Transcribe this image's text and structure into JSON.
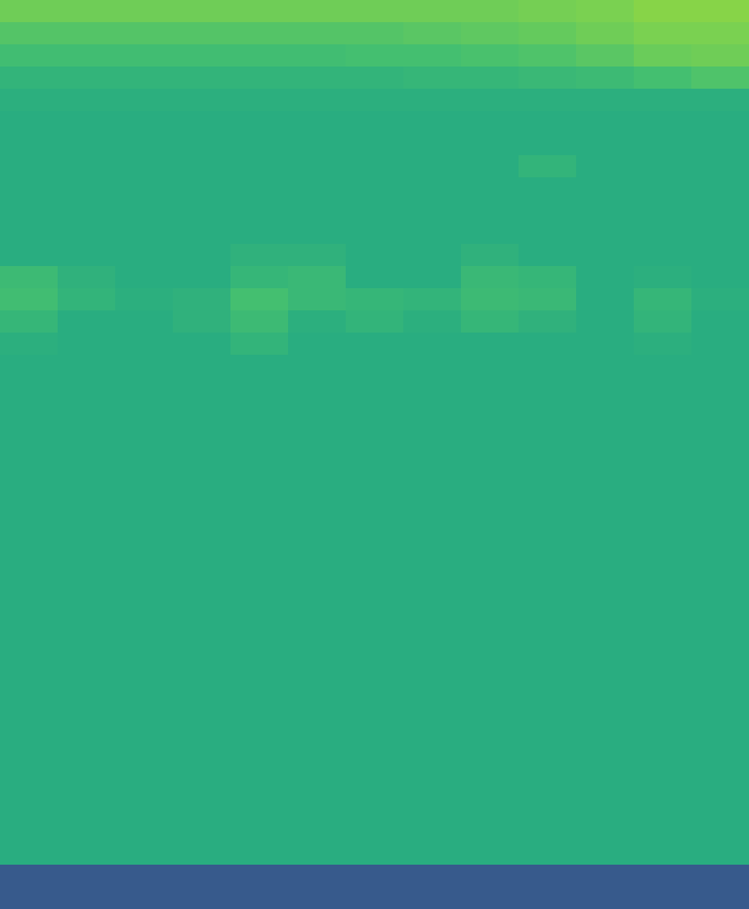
{
  "chart_data": {
    "type": "heatmap",
    "tick_labels": false,
    "xlim": [
      0,
      13
    ],
    "ylim": [
      0,
      41
    ],
    "zlim": [
      0,
      1
    ],
    "cells": [
      [
        0.78,
        0.78,
        0.78,
        0.78,
        0.78,
        0.78,
        0.78,
        0.78,
        0.78,
        0.79,
        0.8,
        0.82,
        0.82
      ],
      [
        0.73,
        0.73,
        0.73,
        0.73,
        0.73,
        0.73,
        0.73,
        0.74,
        0.75,
        0.76,
        0.78,
        0.8,
        0.8
      ],
      [
        0.69,
        0.69,
        0.69,
        0.69,
        0.69,
        0.69,
        0.7,
        0.7,
        0.71,
        0.72,
        0.74,
        0.77,
        0.78
      ],
      [
        0.65,
        0.65,
        0.65,
        0.65,
        0.65,
        0.65,
        0.65,
        0.66,
        0.66,
        0.67,
        0.68,
        0.7,
        0.72
      ],
      [
        0.63,
        0.63,
        0.63,
        0.63,
        0.63,
        0.63,
        0.63,
        0.63,
        0.63,
        0.63,
        0.63,
        0.63,
        0.63
      ],
      [
        0.62,
        0.62,
        0.62,
        0.62,
        0.62,
        0.62,
        0.62,
        0.62,
        0.62,
        0.62,
        0.62,
        0.62,
        0.62
      ],
      [
        0.62,
        0.62,
        0.62,
        0.62,
        0.62,
        0.62,
        0.62,
        0.62,
        0.62,
        0.62,
        0.62,
        0.62,
        0.62
      ],
      [
        0.62,
        0.62,
        0.62,
        0.62,
        0.62,
        0.62,
        0.62,
        0.62,
        0.62,
        0.65,
        0.62,
        0.62,
        0.62
      ],
      [
        0.62,
        0.62,
        0.62,
        0.62,
        0.62,
        0.62,
        0.62,
        0.62,
        0.62,
        0.62,
        0.62,
        0.62,
        0.62
      ],
      [
        0.62,
        0.62,
        0.62,
        0.62,
        0.62,
        0.62,
        0.62,
        0.62,
        0.62,
        0.62,
        0.62,
        0.62,
        0.62
      ],
      [
        0.62,
        0.62,
        0.62,
        0.62,
        0.62,
        0.62,
        0.62,
        0.62,
        0.62,
        0.62,
        0.62,
        0.62,
        0.62
      ],
      [
        0.62,
        0.62,
        0.62,
        0.62,
        0.64,
        0.64,
        0.62,
        0.62,
        0.64,
        0.62,
        0.62,
        0.62,
        0.62
      ],
      [
        0.68,
        0.64,
        0.62,
        0.62,
        0.66,
        0.67,
        0.62,
        0.62,
        0.67,
        0.66,
        0.62,
        0.63,
        0.62
      ],
      [
        0.69,
        0.65,
        0.63,
        0.64,
        0.7,
        0.67,
        0.66,
        0.65,
        0.68,
        0.67,
        0.62,
        0.66,
        0.63
      ],
      [
        0.66,
        0.62,
        0.62,
        0.64,
        0.68,
        0.63,
        0.65,
        0.63,
        0.66,
        0.64,
        0.62,
        0.65,
        0.62
      ],
      [
        0.63,
        0.62,
        0.62,
        0.62,
        0.65,
        0.62,
        0.62,
        0.62,
        0.62,
        0.62,
        0.62,
        0.63,
        0.62
      ],
      [
        0.62,
        0.62,
        0.62,
        0.62,
        0.62,
        0.62,
        0.62,
        0.62,
        0.62,
        0.62,
        0.62,
        0.62,
        0.62
      ],
      [
        0.62,
        0.62,
        0.62,
        0.62,
        0.62,
        0.62,
        0.62,
        0.62,
        0.62,
        0.62,
        0.62,
        0.62,
        0.62
      ],
      [
        0.62,
        0.62,
        0.62,
        0.62,
        0.62,
        0.62,
        0.62,
        0.62,
        0.62,
        0.62,
        0.62,
        0.62,
        0.62
      ],
      [
        0.62,
        0.62,
        0.62,
        0.62,
        0.62,
        0.62,
        0.62,
        0.62,
        0.62,
        0.62,
        0.62,
        0.62,
        0.62
      ],
      [
        0.62,
        0.62,
        0.62,
        0.62,
        0.62,
        0.62,
        0.62,
        0.62,
        0.62,
        0.62,
        0.62,
        0.62,
        0.62
      ],
      [
        0.62,
        0.62,
        0.62,
        0.62,
        0.62,
        0.62,
        0.62,
        0.62,
        0.62,
        0.62,
        0.62,
        0.62,
        0.62
      ],
      [
        0.62,
        0.62,
        0.62,
        0.62,
        0.62,
        0.62,
        0.62,
        0.62,
        0.62,
        0.62,
        0.62,
        0.62,
        0.62
      ],
      [
        0.62,
        0.62,
        0.62,
        0.62,
        0.62,
        0.62,
        0.62,
        0.62,
        0.62,
        0.62,
        0.62,
        0.62,
        0.62
      ],
      [
        0.62,
        0.62,
        0.62,
        0.62,
        0.62,
        0.62,
        0.62,
        0.62,
        0.62,
        0.62,
        0.62,
        0.62,
        0.62
      ],
      [
        0.62,
        0.62,
        0.62,
        0.62,
        0.62,
        0.62,
        0.62,
        0.62,
        0.62,
        0.62,
        0.62,
        0.62,
        0.62
      ],
      [
        0.62,
        0.62,
        0.62,
        0.62,
        0.62,
        0.62,
        0.62,
        0.62,
        0.62,
        0.62,
        0.62,
        0.62,
        0.62
      ],
      [
        0.62,
        0.62,
        0.62,
        0.62,
        0.62,
        0.62,
        0.62,
        0.62,
        0.62,
        0.62,
        0.62,
        0.62,
        0.62
      ],
      [
        0.62,
        0.62,
        0.62,
        0.62,
        0.62,
        0.62,
        0.62,
        0.62,
        0.62,
        0.62,
        0.62,
        0.62,
        0.62
      ],
      [
        0.62,
        0.62,
        0.62,
        0.62,
        0.62,
        0.62,
        0.62,
        0.62,
        0.62,
        0.62,
        0.62,
        0.62,
        0.62
      ],
      [
        0.62,
        0.62,
        0.62,
        0.62,
        0.62,
        0.62,
        0.62,
        0.62,
        0.62,
        0.62,
        0.62,
        0.62,
        0.62
      ],
      [
        0.62,
        0.62,
        0.62,
        0.62,
        0.62,
        0.62,
        0.62,
        0.62,
        0.62,
        0.62,
        0.62,
        0.62,
        0.62
      ],
      [
        0.62,
        0.62,
        0.62,
        0.62,
        0.62,
        0.62,
        0.62,
        0.62,
        0.62,
        0.62,
        0.62,
        0.62,
        0.62
      ],
      [
        0.62,
        0.62,
        0.62,
        0.62,
        0.62,
        0.62,
        0.62,
        0.62,
        0.62,
        0.62,
        0.62,
        0.62,
        0.62
      ],
      [
        0.62,
        0.62,
        0.62,
        0.62,
        0.62,
        0.62,
        0.62,
        0.62,
        0.62,
        0.62,
        0.62,
        0.62,
        0.62
      ],
      [
        0.62,
        0.62,
        0.62,
        0.62,
        0.62,
        0.62,
        0.62,
        0.62,
        0.62,
        0.62,
        0.62,
        0.62,
        0.62
      ],
      [
        0.62,
        0.62,
        0.62,
        0.62,
        0.62,
        0.62,
        0.62,
        0.62,
        0.62,
        0.62,
        0.62,
        0.62,
        0.62
      ],
      [
        0.62,
        0.62,
        0.62,
        0.62,
        0.62,
        0.62,
        0.62,
        0.62,
        0.62,
        0.62,
        0.62,
        0.62,
        0.62
      ],
      [
        0.62,
        0.62,
        0.62,
        0.62,
        0.62,
        0.62,
        0.62,
        0.62,
        0.62,
        0.62,
        0.62,
        0.62,
        0.62
      ],
      [
        0.28,
        0.28,
        0.28,
        0.28,
        0.28,
        0.28,
        0.28,
        0.28,
        0.28,
        0.28,
        0.28,
        0.28,
        0.28
      ],
      [
        0.28,
        0.28,
        0.28,
        0.28,
        0.28,
        0.28,
        0.28,
        0.28,
        0.28,
        0.28,
        0.28,
        0.28,
        0.28
      ]
    ]
  }
}
